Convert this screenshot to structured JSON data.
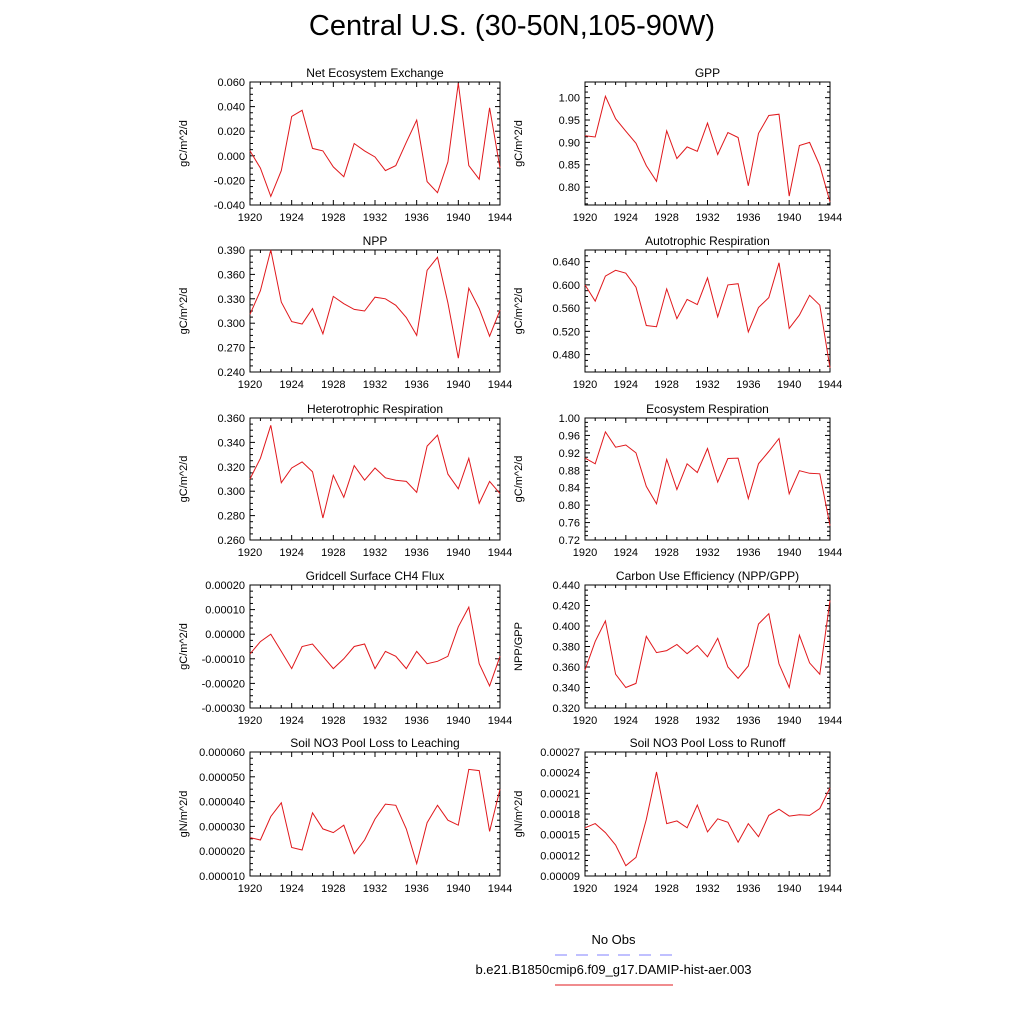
{
  "page": {
    "title": "Central U.S. (30-50N,105-90W)"
  },
  "legend": {
    "items": [
      {
        "label": "No Obs",
        "color": "#8080ff",
        "dash": true
      },
      {
        "label": "b.e21.B1850cmip6.f09_g17.DAMIP-hist-aer.003",
        "color": "#e0181c",
        "dash": false
      }
    ]
  },
  "chart_data": [
    {
      "type": "line",
      "title": "Net Ecosystem Exchange",
      "ylabel": "gC/m^2/d",
      "x": [
        1920,
        1921,
        1922,
        1923,
        1924,
        1925,
        1926,
        1927,
        1928,
        1929,
        1930,
        1931,
        1932,
        1933,
        1934,
        1935,
        1936,
        1937,
        1938,
        1939,
        1940,
        1941,
        1942,
        1943,
        1944
      ],
      "xlim": [
        1920,
        1944
      ],
      "xticks": [
        1920,
        1924,
        1928,
        1932,
        1936,
        1940,
        1944
      ],
      "ylim": [
        -0.04,
        0.06
      ],
      "yticks": [
        "-0.040",
        "-0.020",
        "0.000",
        "0.020",
        "0.040",
        "0.060"
      ],
      "series": [
        {
          "color": "#e0181c",
          "values": [
            0.004,
            -0.01,
            -0.033,
            -0.012,
            0.032,
            0.037,
            0.006,
            0.004,
            -0.009,
            -0.017,
            0.01,
            0.004,
            -0.001,
            -0.012,
            -0.008,
            0.011,
            0.029,
            -0.021,
            -0.03,
            -0.005,
            0.059,
            -0.008,
            -0.019,
            0.039,
            -0.01
          ]
        }
      ]
    },
    {
      "type": "line",
      "title": "GPP",
      "ylabel": "gC/m^2/d",
      "x": [
        1920,
        1921,
        1922,
        1923,
        1924,
        1925,
        1926,
        1927,
        1928,
        1929,
        1930,
        1931,
        1932,
        1933,
        1934,
        1935,
        1936,
        1937,
        1938,
        1939,
        1940,
        1941,
        1942,
        1943,
        1944
      ],
      "xlim": [
        1920,
        1944
      ],
      "xticks": [
        1920,
        1924,
        1928,
        1932,
        1936,
        1940,
        1944
      ],
      "ylim": [
        0.76,
        1.035
      ],
      "yticks": [
        "0.80",
        "0.85",
        "0.90",
        "0.95",
        "1.00"
      ],
      "series": [
        {
          "color": "#e0181c",
          "values": [
            0.915,
            0.912,
            1.003,
            0.953,
            0.925,
            0.898,
            0.848,
            0.813,
            0.926,
            0.864,
            0.89,
            0.88,
            0.943,
            0.873,
            0.922,
            0.911,
            0.803,
            0.92,
            0.96,
            0.963,
            0.78,
            0.893,
            0.9,
            0.848,
            0.767
          ]
        }
      ]
    },
    {
      "type": "line",
      "title": "NPP",
      "ylabel": "gC/m^2/d",
      "x": [
        1920,
        1921,
        1922,
        1923,
        1924,
        1925,
        1926,
        1927,
        1928,
        1929,
        1930,
        1931,
        1932,
        1933,
        1934,
        1935,
        1936,
        1937,
        1938,
        1939,
        1940,
        1941,
        1942,
        1943,
        1944
      ],
      "xlim": [
        1920,
        1944
      ],
      "xticks": [
        1920,
        1924,
        1928,
        1932,
        1936,
        1940,
        1944
      ],
      "ylim": [
        0.24,
        0.39
      ],
      "yticks": [
        "0.240",
        "0.270",
        "0.300",
        "0.330",
        "0.360",
        "0.390"
      ],
      "series": [
        {
          "color": "#e0181c",
          "values": [
            0.311,
            0.34,
            0.39,
            0.326,
            0.302,
            0.299,
            0.318,
            0.287,
            0.333,
            0.324,
            0.317,
            0.315,
            0.332,
            0.33,
            0.322,
            0.307,
            0.285,
            0.365,
            0.381,
            0.325,
            0.257,
            0.343,
            0.318,
            0.284,
            0.316
          ]
        }
      ]
    },
    {
      "type": "line",
      "title": "Autotrophic Respiration",
      "ylabel": "gC/m^2/d",
      "x": [
        1920,
        1921,
        1922,
        1923,
        1924,
        1925,
        1926,
        1927,
        1928,
        1929,
        1930,
        1931,
        1932,
        1933,
        1934,
        1935,
        1936,
        1937,
        1938,
        1939,
        1940,
        1941,
        1942,
        1943,
        1944
      ],
      "xlim": [
        1920,
        1944
      ],
      "xticks": [
        1920,
        1924,
        1928,
        1932,
        1936,
        1940,
        1944
      ],
      "ylim": [
        0.45,
        0.66
      ],
      "yticks": [
        "0.480",
        "0.520",
        "0.560",
        "0.600",
        "0.640"
      ],
      "series": [
        {
          "color": "#e0181c",
          "values": [
            0.6,
            0.572,
            0.615,
            0.625,
            0.62,
            0.596,
            0.53,
            0.528,
            0.593,
            0.542,
            0.575,
            0.566,
            0.612,
            0.545,
            0.6,
            0.602,
            0.519,
            0.561,
            0.578,
            0.638,
            0.525,
            0.548,
            0.582,
            0.565,
            0.457
          ]
        }
      ]
    },
    {
      "type": "line",
      "title": "Heterotrophic Respiration",
      "ylabel": "gC/m^2/d",
      "x": [
        1920,
        1921,
        1922,
        1923,
        1924,
        1925,
        1926,
        1927,
        1928,
        1929,
        1930,
        1931,
        1932,
        1933,
        1934,
        1935,
        1936,
        1937,
        1938,
        1939,
        1940,
        1941,
        1942,
        1943,
        1944
      ],
      "xlim": [
        1920,
        1944
      ],
      "xticks": [
        1920,
        1924,
        1928,
        1932,
        1936,
        1940,
        1944
      ],
      "ylim": [
        0.26,
        0.36
      ],
      "yticks": [
        "0.260",
        "0.280",
        "0.300",
        "0.320",
        "0.340",
        "0.360"
      ],
      "series": [
        {
          "color": "#e0181c",
          "values": [
            0.31,
            0.327,
            0.354,
            0.307,
            0.319,
            0.324,
            0.316,
            0.278,
            0.313,
            0.295,
            0.321,
            0.309,
            0.319,
            0.311,
            0.309,
            0.308,
            0.299,
            0.337,
            0.346,
            0.314,
            0.302,
            0.327,
            0.29,
            0.308,
            0.298
          ]
        }
      ]
    },
    {
      "type": "line",
      "title": "Ecosystem Respiration",
      "ylabel": "gC/m^2/d",
      "x": [
        1920,
        1921,
        1922,
        1923,
        1924,
        1925,
        1926,
        1927,
        1928,
        1929,
        1930,
        1931,
        1932,
        1933,
        1934,
        1935,
        1936,
        1937,
        1938,
        1939,
        1940,
        1941,
        1942,
        1943,
        1944
      ],
      "xlim": [
        1920,
        1944
      ],
      "xticks": [
        1920,
        1924,
        1928,
        1932,
        1936,
        1940,
        1944
      ],
      "ylim": [
        0.72,
        1.0
      ],
      "yticks": [
        "0.72",
        "0.76",
        "0.80",
        "0.84",
        "0.88",
        "0.92",
        "0.96",
        "1.00"
      ],
      "series": [
        {
          "color": "#e0181c",
          "values": [
            0.908,
            0.895,
            0.968,
            0.933,
            0.938,
            0.92,
            0.843,
            0.803,
            0.905,
            0.836,
            0.895,
            0.875,
            0.93,
            0.853,
            0.907,
            0.908,
            0.815,
            0.895,
            0.923,
            0.953,
            0.826,
            0.879,
            0.873,
            0.872,
            0.753
          ]
        }
      ]
    },
    {
      "type": "line",
      "title": "Gridcell Surface CH4 Flux",
      "ylabel": "gC/m^2/d",
      "x": [
        1920,
        1921,
        1922,
        1923,
        1924,
        1925,
        1926,
        1927,
        1928,
        1929,
        1930,
        1931,
        1932,
        1933,
        1934,
        1935,
        1936,
        1937,
        1938,
        1939,
        1940,
        1941,
        1942,
        1943,
        1944
      ],
      "xlim": [
        1920,
        1944
      ],
      "xticks": [
        1920,
        1924,
        1928,
        1932,
        1936,
        1940,
        1944
      ],
      "ylim": [
        -0.0003,
        0.0002
      ],
      "yticks": [
        "-0.00030",
        "-0.00020",
        "-0.00010",
        "0.00000",
        "0.00010",
        "0.00020"
      ],
      "series": [
        {
          "color": "#e0181c",
          "values": [
            -8e-05,
            -3e-05,
            0.0,
            -7e-05,
            -0.00014,
            -5e-05,
            -4e-05,
            -9e-05,
            -0.00014,
            -0.0001,
            -5e-05,
            -4e-05,
            -0.00014,
            -7e-05,
            -9e-05,
            -0.00014,
            -7e-05,
            -0.00012,
            -0.00011,
            -9e-05,
            3e-05,
            0.00011,
            -0.00012,
            -0.00021,
            -9e-05
          ]
        }
      ]
    },
    {
      "type": "line",
      "title": "Carbon Use Efficiency (NPP/GPP)",
      "ylabel": "NPP/GPP",
      "x": [
        1920,
        1921,
        1922,
        1923,
        1924,
        1925,
        1926,
        1927,
        1928,
        1929,
        1930,
        1931,
        1932,
        1933,
        1934,
        1935,
        1936,
        1937,
        1938,
        1939,
        1940,
        1941,
        1942,
        1943,
        1944
      ],
      "xlim": [
        1920,
        1944
      ],
      "xticks": [
        1920,
        1924,
        1928,
        1932,
        1936,
        1940,
        1944
      ],
      "ylim": [
        0.32,
        0.44
      ],
      "yticks": [
        "0.320",
        "0.340",
        "0.360",
        "0.380",
        "0.400",
        "0.420",
        "0.440"
      ],
      "series": [
        {
          "color": "#e0181c",
          "values": [
            0.357,
            0.385,
            0.405,
            0.353,
            0.34,
            0.344,
            0.39,
            0.374,
            0.376,
            0.382,
            0.373,
            0.381,
            0.37,
            0.388,
            0.36,
            0.349,
            0.361,
            0.402,
            0.412,
            0.363,
            0.34,
            0.391,
            0.364,
            0.353,
            0.425
          ]
        }
      ]
    },
    {
      "type": "line",
      "title": "Soil NO3 Pool Loss to Leaching",
      "ylabel": "gN/m^2/d",
      "x": [
        1920,
        1921,
        1922,
        1923,
        1924,
        1925,
        1926,
        1927,
        1928,
        1929,
        1930,
        1931,
        1932,
        1933,
        1934,
        1935,
        1936,
        1937,
        1938,
        1939,
        1940,
        1941,
        1942,
        1943,
        1944
      ],
      "xlim": [
        1920,
        1944
      ],
      "xticks": [
        1920,
        1924,
        1928,
        1932,
        1936,
        1940,
        1944
      ],
      "ylim": [
        1e-05,
        6e-05
      ],
      "yticks": [
        "0.000010",
        "0.000020",
        "0.000030",
        "0.000040",
        "0.000050",
        "0.000060"
      ],
      "series": [
        {
          "color": "#e0181c",
          "values": [
            2.55e-05,
            2.45e-05,
            3.4e-05,
            3.95e-05,
            2.15e-05,
            2.05e-05,
            3.55e-05,
            2.9e-05,
            2.75e-05,
            3.05e-05,
            1.9e-05,
            2.45e-05,
            3.3e-05,
            3.9e-05,
            3.85e-05,
            2.9e-05,
            1.5e-05,
            3.15e-05,
            3.85e-05,
            3.25e-05,
            3.05e-05,
            5.3e-05,
            5.25e-05,
            2.8e-05,
            4.5e-05
          ]
        }
      ]
    },
    {
      "type": "line",
      "title": "Soil NO3 Pool Loss to Runoff",
      "ylabel": "gN/m^2/d",
      "x": [
        1920,
        1921,
        1922,
        1923,
        1924,
        1925,
        1926,
        1927,
        1928,
        1929,
        1930,
        1931,
        1932,
        1933,
        1934,
        1935,
        1936,
        1937,
        1938,
        1939,
        1940,
        1941,
        1942,
        1943,
        1944
      ],
      "xlim": [
        1920,
        1944
      ],
      "xticks": [
        1920,
        1924,
        1928,
        1932,
        1936,
        1940,
        1944
      ],
      "ylim": [
        9e-05,
        0.00027
      ],
      "yticks": [
        "0.00009",
        "0.00012",
        "0.00015",
        "0.00018",
        "0.00021",
        "0.00024",
        "0.00027"
      ],
      "series": [
        {
          "color": "#e0181c",
          "values": [
            0.00016,
            0.000166,
            0.000153,
            0.000135,
            0.000105,
            0.000117,
            0.000172,
            0.000241,
            0.000166,
            0.00017,
            0.00016,
            0.000193,
            0.000154,
            0.000173,
            0.000168,
            0.000139,
            0.000166,
            0.000147,
            0.000178,
            0.000187,
            0.000177,
            0.000179,
            0.000178,
            0.000188,
            0.000218
          ]
        }
      ]
    }
  ]
}
